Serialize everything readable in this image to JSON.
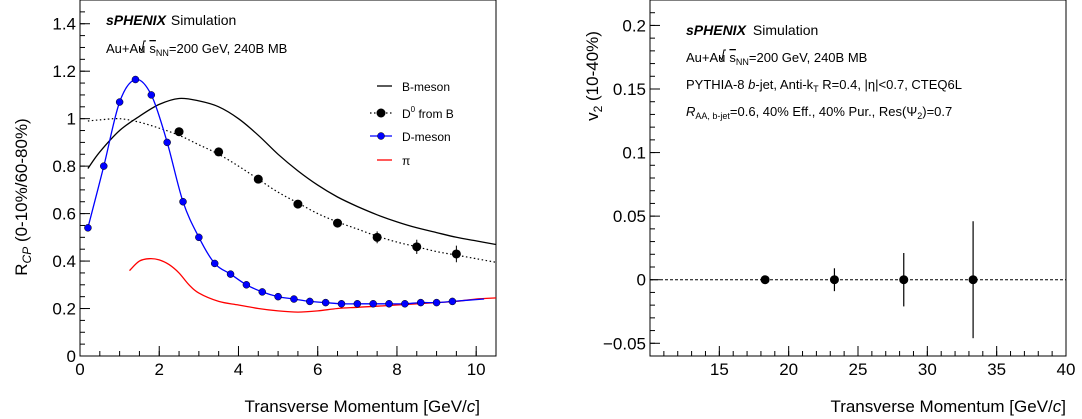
{
  "chart_data": [
    {
      "type": "line",
      "ylabel_main": "R",
      "ylabel_sub": "CP",
      "ylabel_rest": " (0-10%/60-80%)",
      "xlabel_text": "Transverse Momentum [GeV/",
      "xlabel_italic": "c",
      "xlabel_end": "]",
      "xlim": [
        0,
        10.5
      ],
      "ylim": [
        0,
        1.5
      ],
      "xticks": [
        0,
        2,
        4,
        6,
        8,
        10
      ],
      "yticks": [
        0,
        0.2,
        0.4,
        0.6,
        0.8,
        1,
        1.2,
        1.4
      ],
      "xtick_labels": [
        "0",
        "2",
        "4",
        "6",
        "8",
        "10"
      ],
      "ytick_labels": [
        "0",
        "0.2",
        "0.4",
        "0.6",
        "0.8",
        "1",
        "1.2",
        "1.4"
      ],
      "annotation_title": "sPHENIX",
      "annotation_title_suffix": "Simulation",
      "annotation_system_prefix": "Au+Au",
      "annotation_sqrt_s": "s",
      "annotation_sqrt_sub": "NN",
      "annotation_energy": "=200 GeV, 240B MB",
      "legend_placement": "right",
      "legend": [
        {
          "label": "B-meson"
        },
        {
          "label_main": "D",
          "label_sup": "0",
          "label_rest": " from B"
        },
        {
          "label": "D-meson"
        },
        {
          "label": "π"
        }
      ],
      "colors": {
        "bmeson": "#000000",
        "d0fromb": "#000000",
        "dmeson": "#0000ff",
        "pion": "#ff0000"
      },
      "series": [
        {
          "name": "B-meson",
          "x": [
            0.2,
            0.5,
            1.0,
            1.5,
            2.0,
            2.5,
            3.0,
            3.5,
            4.0,
            4.5,
            5.0,
            5.5,
            6.0,
            6.5,
            7.0,
            7.5,
            8.0,
            8.5,
            9.0,
            9.5,
            10.0,
            10.5
          ],
          "y": [
            0.79,
            0.86,
            0.95,
            1.01,
            1.06,
            1.085,
            1.075,
            1.05,
            1.0,
            0.93,
            0.85,
            0.78,
            0.72,
            0.67,
            0.63,
            0.595,
            0.565,
            0.54,
            0.52,
            0.5,
            0.485,
            0.47
          ]
        },
        {
          "name": "D0 from B (curve)",
          "x": [
            0.2,
            0.5,
            1.0,
            1.5,
            2.0,
            2.5,
            3.0,
            3.5,
            4.0,
            4.5,
            5.0,
            5.5,
            6.0,
            6.5,
            7.0,
            7.5,
            8.0,
            8.5,
            9.0,
            9.5,
            10.0,
            10.5
          ],
          "y": [
            0.99,
            0.995,
            1.0,
            0.985,
            0.96,
            0.93,
            0.89,
            0.85,
            0.8,
            0.745,
            0.69,
            0.645,
            0.6,
            0.565,
            0.535,
            0.505,
            0.48,
            0.46,
            0.44,
            0.425,
            0.41,
            0.395
          ]
        },
        {
          "name": "D0 from B (points)",
          "x": [
            2.5,
            3.5,
            4.5,
            5.5,
            6.5,
            7.5,
            8.5,
            9.5
          ],
          "y": [
            0.945,
            0.86,
            0.745,
            0.64,
            0.56,
            0.5,
            0.46,
            0.43
          ],
          "err": [
            0.01,
            0.01,
            0.012,
            0.012,
            0.015,
            0.025,
            0.03,
            0.035
          ]
        },
        {
          "name": "D-meson",
          "x": [
            0.2,
            0.6,
            1.0,
            1.4,
            1.8,
            2.2,
            2.6,
            3.0,
            3.4,
            3.8,
            4.2,
            4.6,
            5.0,
            5.4,
            5.8,
            6.2,
            6.6,
            7.0,
            7.4,
            7.8,
            8.2,
            8.6,
            9.0,
            9.4,
            9.8,
            10.2
          ],
          "y": [
            0.54,
            0.8,
            1.07,
            1.165,
            1.1,
            0.9,
            0.65,
            0.5,
            0.39,
            0.345,
            0.3,
            0.27,
            0.25,
            0.24,
            0.23,
            0.225,
            0.22,
            0.22,
            0.22,
            0.22,
            0.22,
            0.225,
            0.225,
            0.23,
            0.235,
            0.24
          ],
          "markers_x": [
            0.2,
            0.6,
            1.0,
            1.4,
            1.8,
            2.2,
            2.6,
            3.0,
            3.4,
            3.8,
            4.2,
            4.6,
            5.0,
            5.4,
            5.8,
            6.2,
            6.6,
            7.0,
            7.4,
            7.8,
            8.2,
            8.6,
            9.0,
            9.4
          ],
          "markers_y": [
            0.54,
            0.8,
            1.07,
            1.165,
            1.1,
            0.9,
            0.65,
            0.5,
            0.39,
            0.345,
            0.3,
            0.27,
            0.25,
            0.24,
            0.23,
            0.225,
            0.22,
            0.22,
            0.22,
            0.22,
            0.22,
            0.225,
            0.225,
            0.23
          ]
        },
        {
          "name": "π",
          "x": [
            1.25,
            1.5,
            1.75,
            2.0,
            2.25,
            2.5,
            2.75,
            3.0,
            3.5,
            4.0,
            4.5,
            5.0,
            5.5,
            6.0,
            6.5,
            7.0,
            7.5,
            8.0,
            8.5,
            9.0,
            9.5,
            10.0,
            10.5
          ],
          "y": [
            0.36,
            0.4,
            0.41,
            0.405,
            0.385,
            0.35,
            0.3,
            0.265,
            0.23,
            0.215,
            0.2,
            0.19,
            0.185,
            0.19,
            0.2,
            0.205,
            0.21,
            0.215,
            0.22,
            0.225,
            0.23,
            0.24,
            0.245
          ]
        }
      ]
    },
    {
      "type": "scatter",
      "ylabel_main": "v",
      "ylabel_sub": "2",
      "ylabel_rest": " (10-40%)",
      "xlabel_text": "Transverse Momentum [GeV/",
      "xlabel_italic": "c",
      "xlabel_end": "]",
      "xlim": [
        10,
        40
      ],
      "ylim": [
        -0.06,
        0.22
      ],
      "xticks": [
        15,
        20,
        25,
        30,
        35,
        40
      ],
      "yticks": [
        -0.05,
        0,
        0.05,
        0.1,
        0.15,
        0.2
      ],
      "xtick_labels": [
        "15",
        "20",
        "25",
        "30",
        "35",
        "40"
      ],
      "ytick_labels": [
        "−0.05",
        "0",
        "0.05",
        "0.1",
        "0.15",
        "0.2"
      ],
      "reference_line": 0,
      "annotation_title": "sPHENIX",
      "annotation_title_suffix": "Simulation",
      "annotation_system_prefix": "Au+Au",
      "annotation_sqrt_s": "s",
      "annotation_sqrt_sub": "NN",
      "annotation_energy": "=200 GeV, 240B MB",
      "annotation_line3_a": "PYTHIA-8 ",
      "annotation_line3_b": "b",
      "annotation_line3_c": "-jet, Anti-k",
      "annotation_line3_d": "T",
      "annotation_line3_e": " R=0.4, |η|<0.7, CTEQ6L",
      "annotation_line4_a": "R",
      "annotation_line4_b": "AA, b-jet",
      "annotation_line4_c": "=0.6, 40% Eff., 40% Pur., Res(Ψ",
      "annotation_line4_d": "2",
      "annotation_line4_e": ")=0.7",
      "series": [
        {
          "x": [
            18.3,
            23.3,
            28.3,
            33.3
          ],
          "y": [
            0,
            0,
            0,
            0
          ],
          "err": [
            0.002,
            0.009,
            0.021,
            0.046
          ]
        }
      ]
    }
  ]
}
